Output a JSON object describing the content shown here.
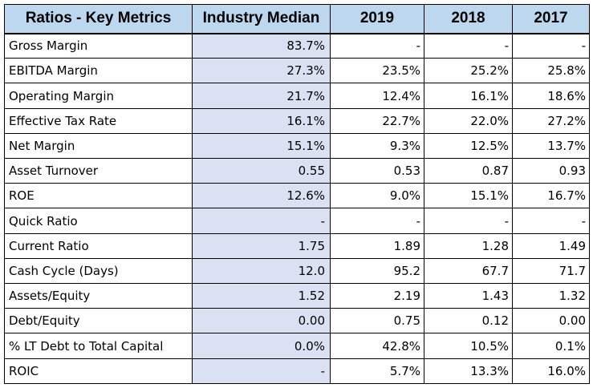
{
  "table": {
    "headers": [
      "Ratios - Key Metrics",
      "Industry Median",
      "2019",
      "2018",
      "2017"
    ],
    "rows": [
      {
        "metric": "Gross Margin",
        "median": "83.7%",
        "y2019": "-",
        "y2018": "-",
        "y2017": "-"
      },
      {
        "metric": "EBITDA Margin",
        "median": "27.3%",
        "y2019": "23.5%",
        "y2018": "25.2%",
        "y2017": "25.8%"
      },
      {
        "metric": "Operating Margin",
        "median": "21.7%",
        "y2019": "12.4%",
        "y2018": "16.1%",
        "y2017": "18.6%"
      },
      {
        "metric": "Effective Tax Rate",
        "median": "16.1%",
        "y2019": "22.7%",
        "y2018": "22.0%",
        "y2017": "27.2%"
      },
      {
        "metric": "Net Margin",
        "median": "15.1%",
        "y2019": "9.3%",
        "y2018": "12.5%",
        "y2017": "13.7%"
      },
      {
        "metric": "Asset Turnover",
        "median": "0.55",
        "y2019": "0.53",
        "y2018": "0.87",
        "y2017": "0.93"
      },
      {
        "metric": "ROE",
        "median": "12.6%",
        "y2019": "9.0%",
        "y2018": "15.1%",
        "y2017": "16.7%"
      },
      {
        "metric": "Quick Ratio",
        "median": "-",
        "y2019": "-",
        "y2018": "-",
        "y2017": "-"
      },
      {
        "metric": "Current Ratio",
        "median": "1.75",
        "y2019": "1.89",
        "y2018": "1.28",
        "y2017": "1.49"
      },
      {
        "metric": "Cash Cycle (Days)",
        "median": "12.0",
        "y2019": "95.2",
        "y2018": "67.7",
        "y2017": "71.7"
      },
      {
        "metric": "Assets/Equity",
        "median": "1.52",
        "y2019": "2.19",
        "y2018": "1.43",
        "y2017": "1.32"
      },
      {
        "metric": "Debt/Equity",
        "median": "0.00",
        "y2019": "0.75",
        "y2018": "0.12",
        "y2017": "0.00"
      },
      {
        "metric": "% LT Debt to Total Capital",
        "median": "0.0%",
        "y2019": "42.8%",
        "y2018": "10.5%",
        "y2017": "0.1%"
      },
      {
        "metric": "ROIC",
        "median": "-",
        "y2019": "5.7%",
        "y2018": "13.3%",
        "y2017": "16.0%"
      }
    ]
  },
  "colors": {
    "header_fill": "#bdd7ee",
    "median_fill": "#d9e1f2",
    "border": "#000000"
  }
}
